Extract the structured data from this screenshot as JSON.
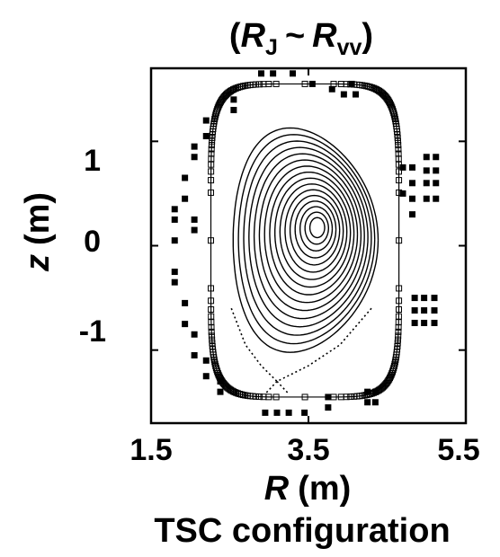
{
  "chart_data": {
    "type": "line",
    "title_parts": {
      "open": "(",
      "r1": "R",
      "r1_sub": "J",
      "tilde": "~",
      "r2": "R",
      "r2_sub": "vv",
      "close": ")"
    },
    "xlabel_symbol": "R",
    "xlabel_unit": "(m)",
    "ylabel_symbol": "z",
    "ylabel_unit": "(m)",
    "caption": "TSC configuration",
    "xlim": [
      1.5,
      5.5
    ],
    "ylim": [
      -1.7,
      1.7
    ],
    "xticks": [
      1.5,
      3.5,
      5.5
    ],
    "yticks": [
      1,
      0,
      -1
    ],
    "xtick_labels": [
      "1.5",
      "3.5",
      "5.5"
    ],
    "ytick_labels": [
      "1",
      "0",
      "-1"
    ],
    "grid": false,
    "magnetic_axis": {
      "r": 3.62,
      "z": 0.18
    },
    "flux_surfaces": {
      "count": 16,
      "rho_min": 0.1,
      "rho_max": 0.98
    },
    "lcfs": {
      "r_min": 2.52,
      "r_max": 4.4,
      "z_top": 1.15,
      "z_bottom": -1.05,
      "r_top": 3.25,
      "x_point_r": 3.1
    },
    "vessel": {
      "r_min": 2.26,
      "r_max": 4.65,
      "z_top": 1.55,
      "z_bottom": -1.45
    },
    "coils": [
      {
        "r": 1.8,
        "z": 0.35
      },
      {
        "r": 1.8,
        "z": 0.25
      },
      {
        "r": 1.8,
        "z": 0.05
      },
      {
        "r": 1.8,
        "z": -0.25
      },
      {
        "r": 1.8,
        "z": -0.35
      },
      {
        "r": 1.93,
        "z": 0.65
      },
      {
        "r": 1.93,
        "z": 0.45
      },
      {
        "r": 1.93,
        "z": -0.55
      },
      {
        "r": 1.93,
        "z": -0.75
      },
      {
        "r": 2.05,
        "z": 0.95
      },
      {
        "r": 2.05,
        "z": 0.85
      },
      {
        "r": 2.05,
        "z": 0.25
      },
      {
        "r": 2.05,
        "z": 0.15
      },
      {
        "r": 2.05,
        "z": -0.85
      },
      {
        "r": 2.05,
        "z": -1.05
      },
      {
        "r": 2.2,
        "z": 1.2
      },
      {
        "r": 2.2,
        "z": 1.05
      },
      {
        "r": 2.2,
        "z": -1.1
      },
      {
        "r": 2.2,
        "z": -1.25
      },
      {
        "r": 2.38,
        "z": -1.3
      },
      {
        "r": 2.38,
        "z": -1.4
      },
      {
        "r": 2.55,
        "z": 1.4
      },
      {
        "r": 2.55,
        "z": 1.3
      },
      {
        "r": 2.9,
        "z": 1.65
      },
      {
        "r": 3.05,
        "z": 1.65
      },
      {
        "r": 3.3,
        "z": 1.65
      },
      {
        "r": 3.55,
        "z": 1.55
      },
      {
        "r": 3.8,
        "z": 1.5
      },
      {
        "r": 3.95,
        "z": 1.45
      },
      {
        "r": 4.05,
        "z": 1.55
      },
      {
        "r": 4.1,
        "z": 1.45
      },
      {
        "r": 2.95,
        "z": -1.6
      },
      {
        "r": 3.1,
        "z": -1.6
      },
      {
        "r": 3.25,
        "z": -1.6
      },
      {
        "r": 3.45,
        "z": -1.6
      },
      {
        "r": 3.75,
        "z": -1.45
      },
      {
        "r": 3.75,
        "z": -1.55
      },
      {
        "r": 4.25,
        "z": -1.4
      },
      {
        "r": 4.35,
        "z": -1.4
      },
      {
        "r": 4.25,
        "z": -1.5
      },
      {
        "r": 4.35,
        "z": -1.5
      },
      {
        "r": 4.7,
        "z": 0.75
      },
      {
        "r": 4.82,
        "z": 0.75
      },
      {
        "r": 4.82,
        "z": 0.6
      },
      {
        "r": 4.7,
        "z": 0.5
      },
      {
        "r": 4.82,
        "z": 0.45
      },
      {
        "r": 4.82,
        "z": 0.3
      },
      {
        "r": 5.0,
        "z": 0.85
      },
      {
        "r": 5.12,
        "z": 0.85
      },
      {
        "r": 5.0,
        "z": 0.72
      },
      {
        "r": 5.12,
        "z": 0.72
      },
      {
        "r": 5.0,
        "z": 0.6
      },
      {
        "r": 5.12,
        "z": 0.6
      },
      {
        "r": 5.0,
        "z": 0.45
      },
      {
        "r": 5.12,
        "z": 0.45
      },
      {
        "r": 4.85,
        "z": -0.5
      },
      {
        "r": 4.97,
        "z": -0.5
      },
      {
        "r": 5.1,
        "z": -0.5
      },
      {
        "r": 4.85,
        "z": -0.62
      },
      {
        "r": 4.97,
        "z": -0.62
      },
      {
        "r": 5.1,
        "z": -0.62
      },
      {
        "r": 4.85,
        "z": -0.74
      },
      {
        "r": 4.97,
        "z": -0.74
      },
      {
        "r": 5.1,
        "z": -0.74
      }
    ]
  }
}
